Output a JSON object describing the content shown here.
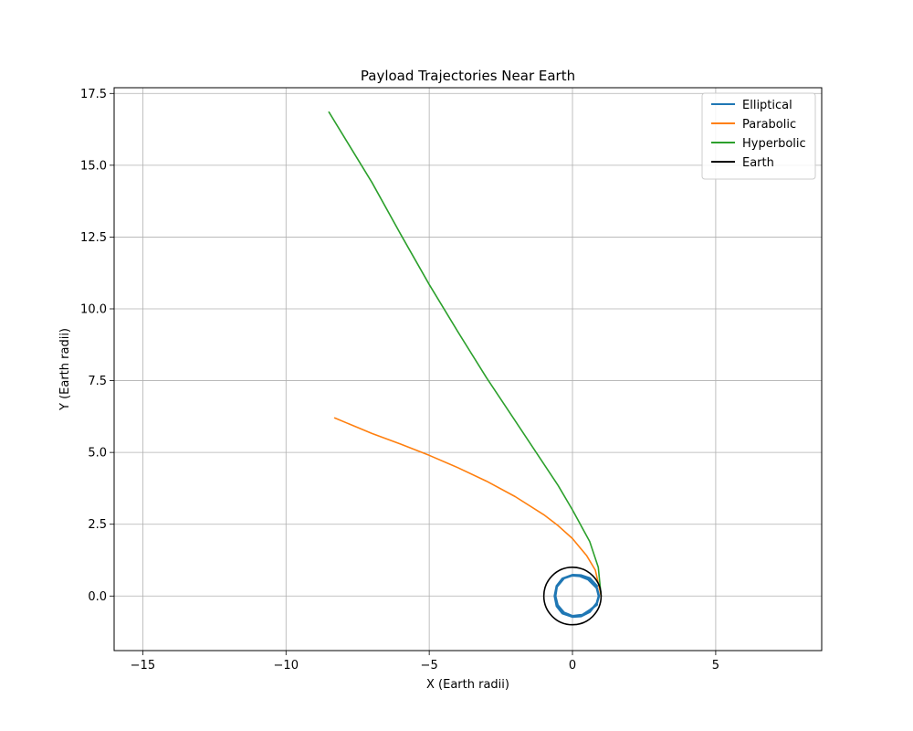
{
  "chart_data": {
    "type": "line",
    "title": "Payload Trajectories Near Earth",
    "xlabel": "X (Earth radii)",
    "ylabel": "Y (Earth radii)",
    "xlim": [
      -16,
      8.7
    ],
    "ylim": [
      -1.9,
      17.7
    ],
    "xticks": [
      -15,
      -10,
      -5,
      0,
      5
    ],
    "xtick_labels": [
      "−15",
      "−10",
      "−5",
      "0",
      "5"
    ],
    "yticks": [
      0.0,
      2.5,
      5.0,
      7.5,
      10.0,
      12.5,
      15.0,
      17.5
    ],
    "ytick_labels": [
      "0.0",
      "2.5",
      "5.0",
      "7.5",
      "10.0",
      "12.5",
      "15.0",
      "17.5"
    ],
    "grid": true,
    "legend_position": "top-right",
    "series": [
      {
        "name": "Elliptical",
        "color": "#1f77b4",
        "x": [
          0.85,
          0.6,
          0.3,
          0.0,
          -0.35,
          -0.55,
          -0.62,
          -0.55,
          -0.35,
          0.0,
          0.3,
          0.6,
          0.85,
          0.92,
          0.85,
          0.55,
          0.25,
          0.0,
          -0.3,
          -0.55,
          -0.6,
          -0.52,
          -0.3,
          0.0,
          0.35,
          0.62,
          0.85
        ],
        "y": [
          0.35,
          0.62,
          0.72,
          0.73,
          0.6,
          0.35,
          0.0,
          -0.35,
          -0.6,
          -0.72,
          -0.7,
          -0.55,
          -0.25,
          0.0,
          0.28,
          0.58,
          0.7,
          0.72,
          0.62,
          0.32,
          0.0,
          -0.32,
          -0.58,
          -0.7,
          -0.66,
          -0.48,
          -0.3
        ]
      },
      {
        "name": "Parabolic",
        "color": "#ff7f0e",
        "x": [
          1.0,
          0.8,
          0.5,
          0.0,
          -0.5,
          -1.0,
          -2.0,
          -3.0,
          -4.0,
          -5.0,
          -6.0,
          -7.0,
          -8.3
        ],
        "y": [
          0.0,
          0.9,
          1.4,
          2.0,
          2.45,
          2.83,
          3.46,
          4.0,
          4.47,
          4.9,
          5.29,
          5.66,
          6.2
        ]
      },
      {
        "name": "Hyperbolic",
        "color": "#2ca02c",
        "x": [
          1.0,
          0.9,
          0.6,
          0.0,
          -0.5,
          -1.0,
          -2.0,
          -3.0,
          -4.0,
          -5.0,
          -6.0,
          -7.0,
          -8.5
        ],
        "y": [
          0.0,
          1.0,
          1.9,
          3.0,
          3.85,
          4.6,
          6.1,
          7.6,
          9.2,
          10.85,
          12.6,
          14.4,
          16.85
        ]
      },
      {
        "name": "Earth",
        "color": "#000000",
        "shape": "circle",
        "center": [
          0,
          0
        ],
        "radius": 1.0
      }
    ]
  }
}
